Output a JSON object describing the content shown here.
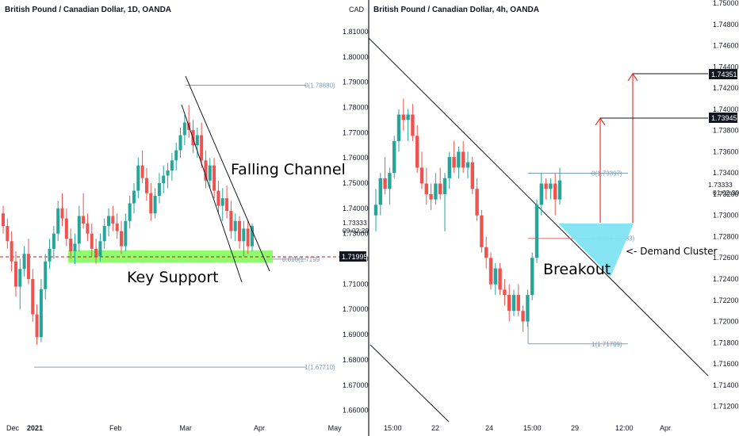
{
  "colors": {
    "up": "#26a69a",
    "down": "#ef5350",
    "fib": "#7b9fb5",
    "support": "#7cfc54",
    "cluster": "#7fe3f2",
    "arrow": "#e53935"
  },
  "chart_data": [
    {
      "type": "candlestick",
      "title": "British Pound / Canadian Dollar, 1D, OANDA",
      "currency_label": "CAD",
      "y_ticks": [
        "1.81000",
        "1.80000",
        "1.79000",
        "1.78000",
        "1.77000",
        "1.76000",
        "1.75000",
        "1.74000",
        "1.73000",
        "1.72000",
        "1.71000",
        "1.70000",
        "1.69000",
        "1.68000",
        "1.67000",
        "1.66000"
      ],
      "ylim": [
        1.658,
        1.815
      ],
      "x_ticks": [
        "Dec",
        "2021",
        "Feb",
        "Mar",
        "Apr",
        "May"
      ],
      "last_price": "1.73333",
      "countdown": "09:02:29",
      "support_price": "1.71995",
      "fib_levels": [
        {
          "label": "0(1.78880)",
          "value": 1.7888
        },
        {
          "label": "0.618(1.7199",
          "value": 1.7199
        },
        {
          "label": "1(1.67710)",
          "value": 1.6771
        }
      ],
      "annotations": {
        "channel": "Falling Channel",
        "support": "Key Support"
      },
      "candles": [
        [
          1.738,
          1.741,
          1.73,
          1.733
        ],
        [
          1.733,
          1.736,
          1.724,
          1.727
        ],
        [
          1.727,
          1.731,
          1.715,
          1.719
        ],
        [
          1.719,
          1.723,
          1.705,
          1.709
        ],
        [
          1.709,
          1.72,
          1.7,
          1.716
        ],
        [
          1.716,
          1.725,
          1.713,
          1.722
        ],
        [
          1.722,
          1.728,
          1.71,
          1.712
        ],
        [
          1.712,
          1.716,
          1.695,
          1.698
        ],
        [
          1.698,
          1.702,
          1.686,
          1.689
        ],
        [
          1.689,
          1.712,
          1.687,
          1.708
        ],
        [
          1.708,
          1.722,
          1.704,
          1.719
        ],
        [
          1.719,
          1.728,
          1.716,
          1.724
        ],
        [
          1.724,
          1.733,
          1.72,
          1.73
        ],
        [
          1.73,
          1.743,
          1.727,
          1.74
        ],
        [
          1.74,
          1.746,
          1.733,
          1.736
        ],
        [
          1.736,
          1.74,
          1.725,
          1.728
        ],
        [
          1.728,
          1.732,
          1.72,
          1.723
        ],
        [
          1.723,
          1.73,
          1.718,
          1.726
        ],
        [
          1.726,
          1.741,
          1.723,
          1.737
        ],
        [
          1.737,
          1.746,
          1.732,
          1.734
        ],
        [
          1.734,
          1.738,
          1.727,
          1.73
        ],
        [
          1.73,
          1.734,
          1.721,
          1.724
        ],
        [
          1.724,
          1.728,
          1.718,
          1.721
        ],
        [
          1.721,
          1.73,
          1.719,
          1.727
        ],
        [
          1.727,
          1.736,
          1.724,
          1.733
        ],
        [
          1.733,
          1.74,
          1.729,
          1.737
        ],
        [
          1.737,
          1.741,
          1.731,
          1.734
        ],
        [
          1.734,
          1.738,
          1.728,
          1.731
        ],
        [
          1.731,
          1.735,
          1.722,
          1.725
        ],
        [
          1.725,
          1.738,
          1.723,
          1.735
        ],
        [
          1.735,
          1.745,
          1.732,
          1.742
        ],
        [
          1.742,
          1.75,
          1.738,
          1.747
        ],
        [
          1.747,
          1.76,
          1.744,
          1.757
        ],
        [
          1.757,
          1.763,
          1.75,
          1.752
        ],
        [
          1.752,
          1.756,
          1.743,
          1.746
        ],
        [
          1.746,
          1.75,
          1.735,
          1.738
        ],
        [
          1.738,
          1.748,
          1.736,
          1.745
        ],
        [
          1.745,
          1.754,
          1.742,
          1.75
        ],
        [
          1.75,
          1.757,
          1.746,
          1.753
        ],
        [
          1.753,
          1.758,
          1.748,
          1.755
        ],
        [
          1.755,
          1.762,
          1.751,
          1.759
        ],
        [
          1.759,
          1.766,
          1.755,
          1.763
        ],
        [
          1.763,
          1.772,
          1.76,
          1.769
        ],
        [
          1.769,
          1.777,
          1.765,
          1.774
        ],
        [
          1.774,
          1.781,
          1.768,
          1.771
        ],
        [
          1.771,
          1.775,
          1.762,
          1.765
        ],
        [
          1.765,
          1.772,
          1.76,
          1.769
        ],
        [
          1.769,
          1.774,
          1.756,
          1.759
        ],
        [
          1.759,
          1.763,
          1.748,
          1.751
        ],
        [
          1.751,
          1.76,
          1.748,
          1.757
        ],
        [
          1.757,
          1.76,
          1.744,
          1.747
        ],
        [
          1.747,
          1.751,
          1.738,
          1.741
        ],
        [
          1.741,
          1.748,
          1.735,
          1.744
        ],
        [
          1.744,
          1.749,
          1.736,
          1.739
        ],
        [
          1.739,
          1.743,
          1.728,
          1.731
        ],
        [
          1.731,
          1.738,
          1.727,
          1.735
        ],
        [
          1.735,
          1.737,
          1.724,
          1.727
        ],
        [
          1.727,
          1.735,
          1.721,
          1.732
        ],
        [
          1.732,
          1.735,
          1.722,
          1.725
        ],
        [
          1.725,
          1.734,
          1.723,
          1.733
        ]
      ]
    },
    {
      "type": "candlestick",
      "title": "British Pound / Canadian Dollar, 4h, OANDA",
      "y_ticks": [
        "1.74800",
        "1.74600",
        "1.74400",
        "1.74200",
        "1.74000",
        "1.73800",
        "1.73600",
        "1.73400",
        "1.73200",
        "1.73000",
        "1.72800",
        "1.72600",
        "1.72400",
        "1.72200",
        "1.72000",
        "1.71800",
        "1.71600",
        "1.71400",
        "1.71200"
      ],
      "y_top_partial": "1.75000",
      "ylim": [
        1.711,
        1.75
      ],
      "x_ticks": [
        "15:00",
        "22",
        "24",
        "15:00",
        "29",
        "12:00",
        "Apr"
      ],
      "last_price": "1.73333",
      "countdown": "01:02:30",
      "target_labels": [
        "1.74351",
        "1.73945"
      ],
      "fib_levels": [
        {
          "label": "0(1.73397)",
          "value": 1.73397
        },
        {
          "label": "0.382(1.72783)",
          "value": 1.72783
        },
        {
          "label": "1(1.71789)",
          "value": 1.71789
        }
      ],
      "annotations": {
        "breakout": "Breakout",
        "cluster": "<- Demand Cluster"
      },
      "candles": [
        [
          1.73,
          1.7325,
          1.7285,
          1.731
        ],
        [
          1.731,
          1.734,
          1.73,
          1.7335
        ],
        [
          1.7335,
          1.7355,
          1.732,
          1.7325
        ],
        [
          1.7325,
          1.7345,
          1.731,
          1.734
        ],
        [
          1.734,
          1.7375,
          1.7335,
          1.737
        ],
        [
          1.737,
          1.74,
          1.736,
          1.7395
        ],
        [
          1.7395,
          1.741,
          1.738,
          1.739
        ],
        [
          1.739,
          1.74,
          1.737,
          1.7395
        ],
        [
          1.7395,
          1.7405,
          1.737,
          1.7375
        ],
        [
          1.7375,
          1.7385,
          1.734,
          1.7345
        ],
        [
          1.7345,
          1.736,
          1.7325,
          1.733
        ],
        [
          1.733,
          1.7345,
          1.731,
          1.732
        ],
        [
          1.732,
          1.733,
          1.7305,
          1.7315
        ],
        [
          1.7315,
          1.734,
          1.731,
          1.733
        ],
        [
          1.733,
          1.7345,
          1.7315,
          1.732
        ],
        [
          1.732,
          1.734,
          1.7285,
          1.7335
        ],
        [
          1.7335,
          1.736,
          1.7325,
          1.7355
        ],
        [
          1.7355,
          1.737,
          1.734,
          1.7345
        ],
        [
          1.7345,
          1.7365,
          1.7335,
          1.736
        ],
        [
          1.736,
          1.737,
          1.734,
          1.7345
        ],
        [
          1.7345,
          1.736,
          1.7335,
          1.735
        ],
        [
          1.735,
          1.7355,
          1.732,
          1.7325
        ],
        [
          1.7325,
          1.7335,
          1.7295,
          1.73
        ],
        [
          1.73,
          1.7305,
          1.7265,
          1.727
        ],
        [
          1.727,
          1.728,
          1.725,
          1.726
        ],
        [
          1.726,
          1.7265,
          1.723,
          1.7235
        ],
        [
          1.7235,
          1.7255,
          1.7225,
          1.725
        ],
        [
          1.725,
          1.7255,
          1.7225,
          1.723
        ],
        [
          1.723,
          1.724,
          1.7215,
          1.7225
        ],
        [
          1.7225,
          1.7235,
          1.72,
          1.721
        ],
        [
          1.721,
          1.723,
          1.7205,
          1.7225
        ],
        [
          1.7225,
          1.7235,
          1.7205,
          1.721
        ],
        [
          1.721,
          1.7215,
          1.719,
          1.72
        ],
        [
          1.72,
          1.723,
          1.7195,
          1.7225
        ],
        [
          1.7225,
          1.7265,
          1.722,
          1.726
        ],
        [
          1.726,
          1.7315,
          1.7255,
          1.731
        ],
        [
          1.731,
          1.734,
          1.73,
          1.733
        ],
        [
          1.733,
          1.7335,
          1.7315,
          1.7325
        ],
        [
          1.7325,
          1.7335,
          1.7315,
          1.733
        ],
        [
          1.733,
          1.734,
          1.73,
          1.7315
        ],
        [
          1.7315,
          1.7345,
          1.731,
          1.7333
        ]
      ]
    }
  ]
}
